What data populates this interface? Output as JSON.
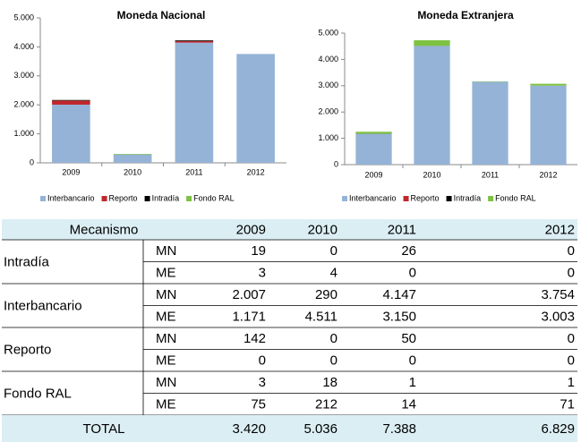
{
  "chart_data": [
    {
      "type": "bar",
      "stacked": true,
      "title": "Moneda Nacional",
      "categories": [
        "2009",
        "2010",
        "2011",
        "2012"
      ],
      "series": [
        {
          "name": "Interbancario",
          "color": "#95b3d7",
          "values": [
            2007,
            290,
            4147,
            3754
          ]
        },
        {
          "name": "Reporto",
          "color": "#c0272d",
          "values": [
            142,
            0,
            50,
            0
          ]
        },
        {
          "name": "Intradía",
          "color": "#000000",
          "values": [
            19,
            0,
            26,
            0
          ]
        },
        {
          "name": "Fondo RAL",
          "color": "#7dc242",
          "values": [
            3,
            18,
            1,
            1
          ]
        }
      ],
      "ylim": [
        0,
        5000
      ],
      "yticks": [
        0,
        {
          "value": 1000,
          "label": "1.000"
        },
        {
          "value": 2000,
          "label": "2.000"
        },
        {
          "value": 3000,
          "label": "3.000"
        },
        {
          "value": 4000,
          "label": "4.000"
        },
        {
          "value": 5000,
          "label": "5.000"
        }
      ],
      "grid": false,
      "legend": "bottom"
    },
    {
      "type": "bar",
      "stacked": true,
      "title": "Moneda Extranjera",
      "categories": [
        "2009",
        "2010",
        "2011",
        "2012"
      ],
      "series": [
        {
          "name": "Interbancario",
          "color": "#95b3d7",
          "values": [
            1171,
            4511,
            3150,
            3003
          ]
        },
        {
          "name": "Reporto",
          "color": "#c0272d",
          "values": [
            0,
            0,
            0,
            0
          ]
        },
        {
          "name": "Intradía",
          "color": "#000000",
          "values": [
            3,
            4,
            0,
            0
          ]
        },
        {
          "name": "Fondo RAL",
          "color": "#7dc242",
          "values": [
            75,
            212,
            14,
            71
          ]
        }
      ],
      "ylim": [
        0,
        5000
      ],
      "yticks": [
        0,
        {
          "value": 1000,
          "label": "1.000"
        },
        {
          "value": 2000,
          "label": "2.000"
        },
        {
          "value": 3000,
          "label": "3.000"
        },
        {
          "value": 4000,
          "label": "4.000"
        },
        {
          "value": 5000,
          "label": "5.000"
        }
      ],
      "grid": false,
      "legend": "bottom"
    }
  ],
  "table": {
    "header": [
      "Mecanismo",
      "2009",
      "2010",
      "2011",
      "2012"
    ],
    "groups": [
      {
        "name": "Intradía",
        "rows": [
          {
            "label": "MN",
            "values": [
              "19",
              "0",
              "26",
              "0"
            ]
          },
          {
            "label": "ME",
            "values": [
              "3",
              "4",
              "0",
              "0"
            ]
          }
        ]
      },
      {
        "name": "Interbancario",
        "rows": [
          {
            "label": "MN",
            "values": [
              "2.007",
              "290",
              "4.147",
              "3.754"
            ]
          },
          {
            "label": "ME",
            "values": [
              "1.171",
              "4.511",
              "3.150",
              "3.003"
            ]
          }
        ]
      },
      {
        "name": "Reporto",
        "rows": [
          {
            "label": "MN",
            "values": [
              "142",
              "0",
              "50",
              "0"
            ]
          },
          {
            "label": "ME",
            "values": [
              "0",
              "0",
              "0",
              "0"
            ]
          }
        ]
      },
      {
        "name": "Fondo RAL",
        "rows": [
          {
            "label": "MN",
            "values": [
              "3",
              "18",
              "1",
              "1"
            ]
          },
          {
            "label": "ME",
            "values": [
              "75",
              "212",
              "14",
              "71"
            ]
          }
        ]
      }
    ],
    "total": {
      "label": "TOTAL",
      "values": [
        "3.420",
        "5.036",
        "7.388",
        "6.829"
      ]
    }
  }
}
